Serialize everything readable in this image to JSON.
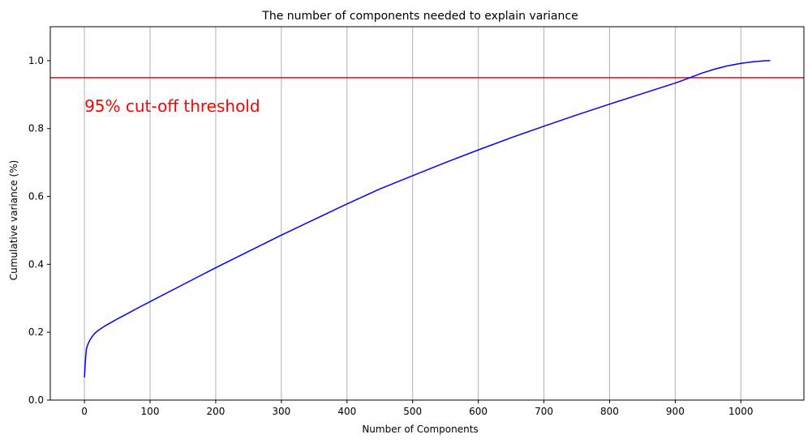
{
  "chart_data": {
    "type": "line",
    "title": "The number of components needed to explain variance",
    "xlabel": "Number of Components",
    "ylabel": "Cumulative variance (%)",
    "xlim": [
      -52,
      1096
    ],
    "ylim": [
      0,
      1.1
    ],
    "xticks": [
      0,
      100,
      200,
      300,
      400,
      500,
      600,
      700,
      800,
      900,
      1000
    ],
    "yticks": [
      0.0,
      0.2,
      0.4,
      0.6,
      0.8,
      1.0
    ],
    "xtick_labels": [
      "0",
      "100",
      "200",
      "300",
      "400",
      "500",
      "600",
      "700",
      "800",
      "900",
      "1000"
    ],
    "ytick_labels": [
      "0.0",
      "0.2",
      "0.4",
      "0.6",
      "0.8",
      "1.0"
    ],
    "grid": "x-axis vertical gridlines",
    "series": [
      {
        "color": "#0000ff",
        "x": [
          0,
          1,
          2,
          3,
          5,
          8,
          12,
          16,
          20,
          30,
          40,
          50,
          60,
          80,
          100,
          150,
          200,
          250,
          300,
          350,
          400,
          450,
          500,
          550,
          600,
          650,
          700,
          750,
          800,
          850,
          900,
          920,
          940,
          960,
          980,
          1000,
          1020,
          1040,
          1044
        ],
        "y": [
          0.068,
          0.1,
          0.13,
          0.15,
          0.163,
          0.176,
          0.188,
          0.197,
          0.204,
          0.217,
          0.228,
          0.239,
          0.249,
          0.27,
          0.29,
          0.34,
          0.39,
          0.438,
          0.486,
          0.532,
          0.578,
          0.622,
          0.661,
          0.7,
          0.737,
          0.773,
          0.807,
          0.84,
          0.872,
          0.903,
          0.934,
          0.948,
          0.963,
          0.975,
          0.985,
          0.992,
          0.997,
          1.0,
          1.0
        ]
      }
    ],
    "threshold": {
      "y": 0.95,
      "color": "#ff0000",
      "label": "95% cut-off threshold",
      "label_x": 0,
      "label_y": 0.85
    }
  }
}
